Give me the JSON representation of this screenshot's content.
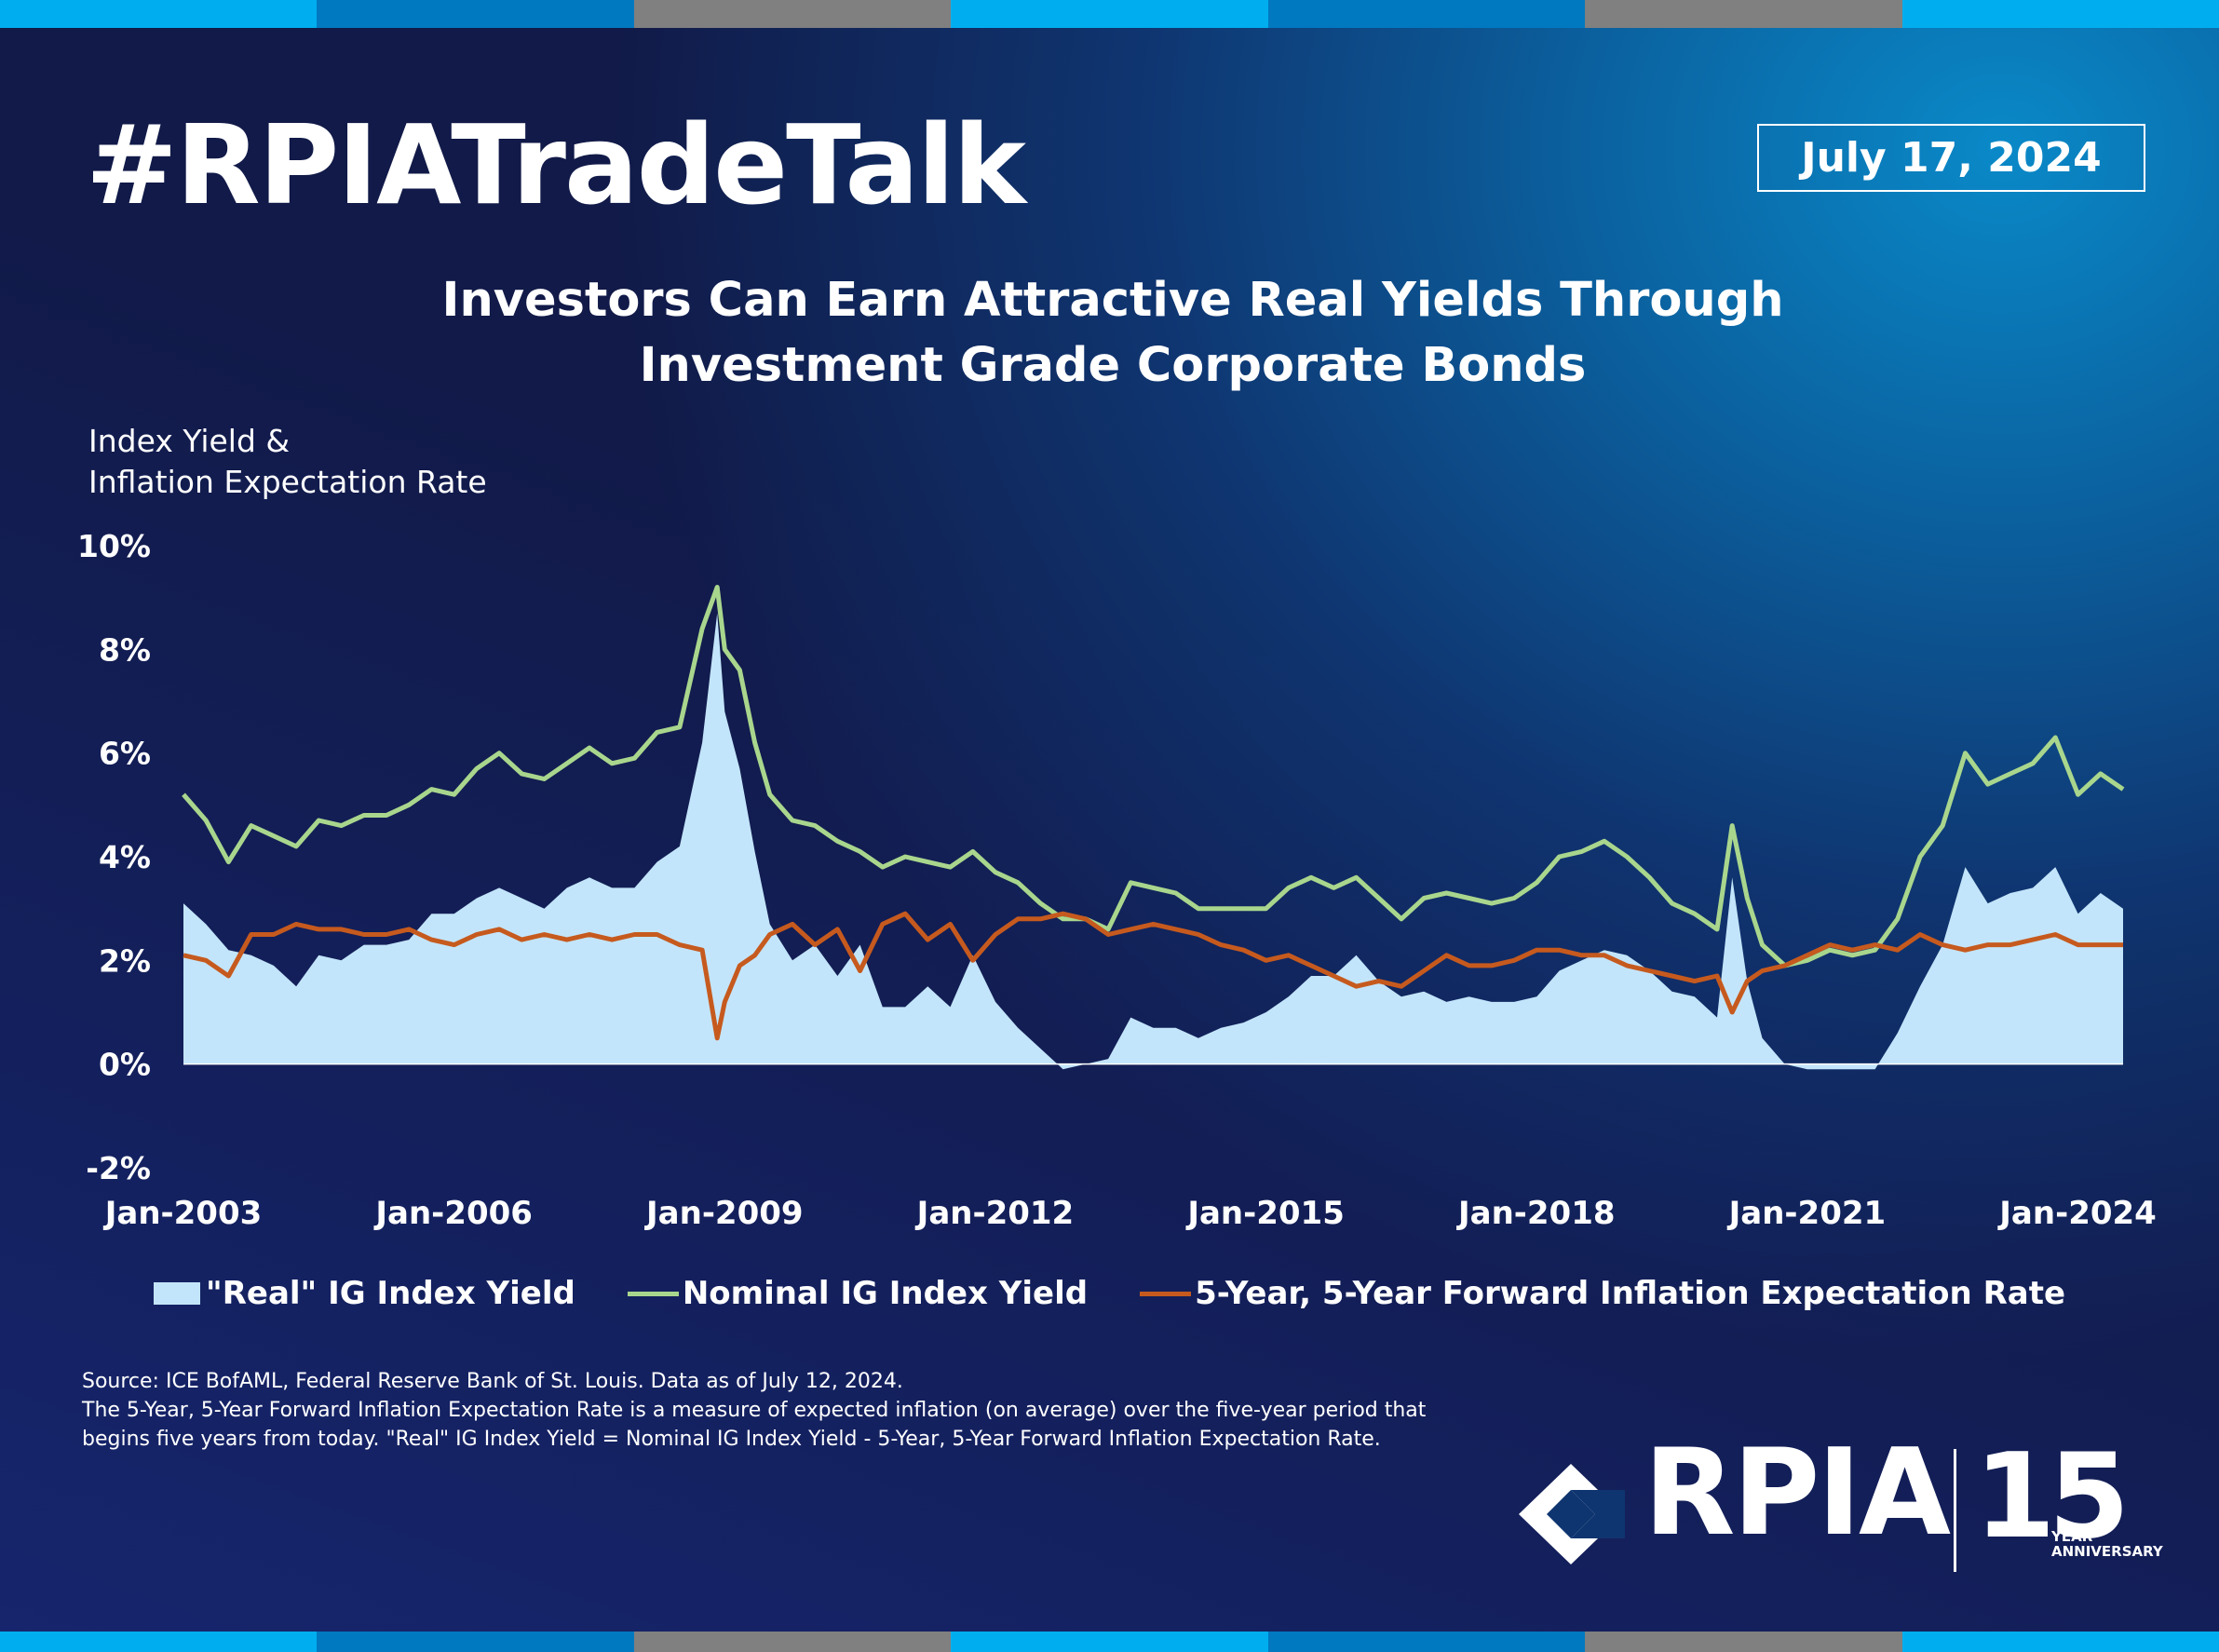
{
  "header": {
    "hashtag": "#RPIATradeTalk",
    "date": "July 17, 2024"
  },
  "chart_title": {
    "line1": "Investors Can Earn Attractive Real Yields Through",
    "line2": "Investment Grade Corporate Bonds"
  },
  "y_axis_title": {
    "line1": "Index Yield &",
    "line2": "Inflation Expectation Rate"
  },
  "legend": {
    "real": "\"Real\" IG Index Yield",
    "nominal": "Nominal IG Index Yield",
    "inflation": "5-Year, 5-Year Forward Inflation Expectation Rate"
  },
  "source": {
    "line1": "Source: ICE BofAML, Federal Reserve Bank of St. Louis. Data as of July 12, 2024.",
    "line2": "The 5-Year, 5-Year Forward Inflation Expectation Rate is a measure of expected inflation (on average) over the five-year period that",
    "line3": "begins five years from today. \"Real\" IG Index Yield = Nominal IG Index Yield - 5-Year, 5-Year Forward Inflation Expectation Rate."
  },
  "logo": {
    "name": "RPIA",
    "number": "15",
    "tag_line1": "YEAR",
    "tag_line2": "ANNIVERSARY"
  },
  "colors": {
    "real": "#c3e5fb",
    "nominal": "#a9d68d",
    "inflation": "#c65a1e",
    "stripe_light": "#00aeef",
    "stripe_mid": "#0079c1",
    "stripe_gray": "#808080"
  },
  "chart_data": {
    "type": "area",
    "x_ticks": [
      "Jan-2003",
      "Jan-2006",
      "Jan-2009",
      "Jan-2012",
      "Jan-2015",
      "Jan-2018",
      "Jan-2021",
      "Jan-2024"
    ],
    "y_ticks": [
      "10%",
      "8%",
      "6%",
      "4%",
      "2%",
      "0%",
      "-2%"
    ],
    "ylim": [
      -2,
      10
    ],
    "xlim": [
      "2003-01",
      "2024-07"
    ],
    "x": [
      "2003-01",
      "2003-04",
      "2003-07",
      "2003-10",
      "2004-01",
      "2004-04",
      "2004-07",
      "2004-10",
      "2005-01",
      "2005-04",
      "2005-07",
      "2005-10",
      "2006-01",
      "2006-04",
      "2006-07",
      "2006-10",
      "2007-01",
      "2007-04",
      "2007-07",
      "2007-10",
      "2008-01",
      "2008-04",
      "2008-07",
      "2008-10",
      "2008-12",
      "2009-01",
      "2009-03",
      "2009-05",
      "2009-07",
      "2009-10",
      "2010-01",
      "2010-04",
      "2010-07",
      "2010-10",
      "2011-01",
      "2011-04",
      "2011-07",
      "2011-10",
      "2012-01",
      "2012-04",
      "2012-07",
      "2012-10",
      "2013-01",
      "2013-04",
      "2013-07",
      "2013-10",
      "2014-01",
      "2014-04",
      "2014-07",
      "2014-10",
      "2015-01",
      "2015-04",
      "2015-07",
      "2015-10",
      "2016-01",
      "2016-04",
      "2016-07",
      "2016-10",
      "2017-01",
      "2017-04",
      "2017-07",
      "2017-10",
      "2018-01",
      "2018-04",
      "2018-07",
      "2018-10",
      "2019-01",
      "2019-04",
      "2019-07",
      "2019-10",
      "2020-01",
      "2020-03",
      "2020-05",
      "2020-07",
      "2020-10",
      "2021-01",
      "2021-04",
      "2021-07",
      "2021-10",
      "2022-01",
      "2022-04",
      "2022-07",
      "2022-10",
      "2023-01",
      "2023-04",
      "2023-07",
      "2023-10",
      "2024-01",
      "2024-04",
      "2024-07"
    ],
    "series": [
      {
        "name": "Nominal IG Index Yield",
        "values": [
          5.2,
          4.7,
          3.9,
          4.6,
          4.4,
          4.2,
          4.7,
          4.6,
          4.8,
          4.8,
          5.0,
          5.3,
          5.2,
          5.7,
          6.0,
          5.6,
          5.5,
          5.8,
          6.1,
          5.8,
          5.9,
          6.4,
          6.5,
          8.4,
          9.2,
          8.0,
          7.6,
          6.2,
          5.2,
          4.7,
          4.6,
          4.3,
          4.1,
          3.8,
          4.0,
          3.9,
          3.8,
          4.1,
          3.7,
          3.5,
          3.1,
          2.8,
          2.8,
          2.6,
          3.5,
          3.4,
          3.3,
          3.0,
          3.0,
          3.0,
          3.0,
          3.4,
          3.6,
          3.4,
          3.6,
          3.2,
          2.8,
          3.2,
          3.3,
          3.2,
          3.1,
          3.2,
          3.5,
          4.0,
          4.1,
          4.3,
          4.0,
          3.6,
          3.1,
          2.9,
          2.6,
          4.6,
          3.2,
          2.3,
          1.9,
          2.0,
          2.2,
          2.1,
          2.2,
          2.8,
          4.0,
          4.6,
          6.0,
          5.4,
          5.6,
          5.8,
          6.3,
          5.2,
          5.6,
          5.3
        ]
      },
      {
        "name": "5-Year, 5-Year Forward Inflation Expectation Rate",
        "values": [
          2.1,
          2.0,
          1.7,
          2.5,
          2.5,
          2.7,
          2.6,
          2.6,
          2.5,
          2.5,
          2.6,
          2.4,
          2.3,
          2.5,
          2.6,
          2.4,
          2.5,
          2.4,
          2.5,
          2.4,
          2.5,
          2.5,
          2.3,
          2.2,
          0.5,
          1.2,
          1.9,
          2.1,
          2.5,
          2.7,
          2.3,
          2.6,
          1.8,
          2.7,
          2.9,
          2.4,
          2.7,
          2.0,
          2.5,
          2.8,
          2.8,
          2.9,
          2.8,
          2.5,
          2.6,
          2.7,
          2.6,
          2.5,
          2.3,
          2.2,
          2.0,
          2.1,
          1.9,
          1.7,
          1.5,
          1.6,
          1.5,
          1.8,
          2.1,
          1.9,
          1.9,
          2.0,
          2.2,
          2.2,
          2.1,
          2.1,
          1.9,
          1.8,
          1.7,
          1.6,
          1.7,
          1.0,
          1.6,
          1.8,
          1.9,
          2.1,
          2.3,
          2.2,
          2.3,
          2.2,
          2.5,
          2.3,
          2.2,
          2.3,
          2.3,
          2.4,
          2.5,
          2.3,
          2.3,
          2.3
        ]
      }
    ],
    "area_series": {
      "name": "\"Real\" IG Index Yield",
      "definition": "Nominal IG Index Yield - 5-Year, 5-Year Forward Inflation Expectation Rate"
    }
  }
}
